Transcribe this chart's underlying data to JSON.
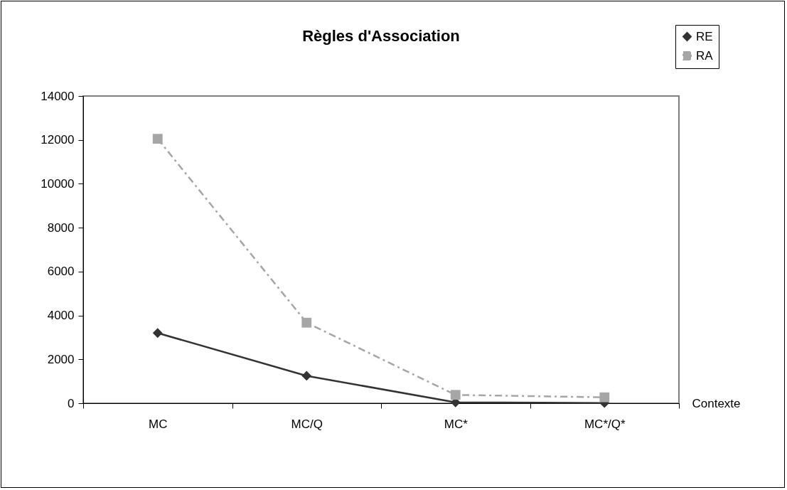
{
  "chart_data": {
    "type": "line",
    "title": "Règles d'Association",
    "xlabel": "Contexte",
    "categories": [
      "MC",
      "MC/Q",
      "MC*",
      "MC*/Q*"
    ],
    "series": [
      {
        "name": "RE",
        "color": "#333333",
        "marker": "diamond",
        "line_style": "solid",
        "values": [
          3200,
          1250,
          40,
          10
        ]
      },
      {
        "name": "RA",
        "color": "#a6a6a6",
        "marker": "square",
        "line_style": "dashdot",
        "values": [
          12050,
          3670,
          380,
          270
        ]
      }
    ],
    "ylim": [
      0,
      14000
    ],
    "yticks": [
      0,
      2000,
      4000,
      6000,
      8000,
      10000,
      12000,
      14000
    ],
    "grid": false,
    "legend": "top right"
  }
}
